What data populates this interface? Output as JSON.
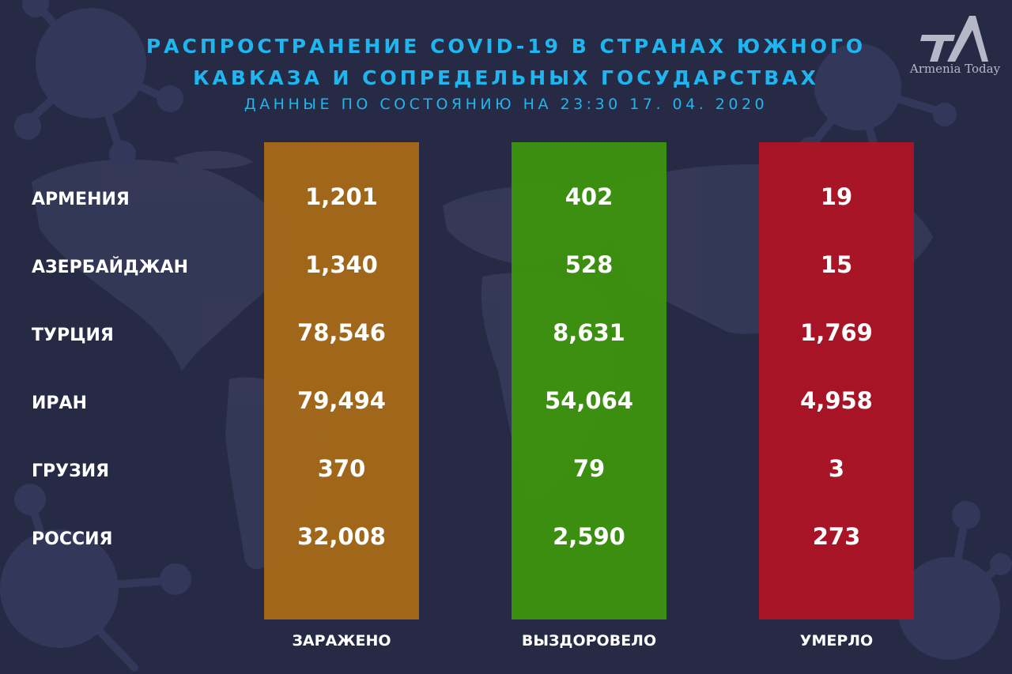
{
  "header": {
    "title_line1": "РАСПРОСТРАНЕНИЕ COVID-19 В СТРАНАХ ЮЖНОГО",
    "title_line2": "КАВКАЗА И СОПРЕДЕЛЬНЫХ ГОСУДАРСТВАХ",
    "subtitle": "ДАННЫЕ ПО СОСТОЯНИЮ НА 23:30  17. 04. 2020"
  },
  "logo": {
    "text": "Armenia Today"
  },
  "colors": {
    "background": "#262a45",
    "title": "#1fb6f0",
    "infected": "#a86a18",
    "recovered": "#3e960c",
    "died": "#b21222"
  },
  "chart_data": {
    "type": "table",
    "categories": [
      "АРМЕНИЯ",
      "АЗЕРБАЙДЖАН",
      "ТУРЦИЯ",
      "ИРАН",
      "ГРУЗИЯ",
      "РОССИЯ"
    ],
    "series": [
      {
        "name": "ЗАРАЖЕНО",
        "values": [
          "1,201",
          "1,340",
          "78,546",
          "79,494",
          "370",
          "32,008"
        ]
      },
      {
        "name": "ВЫЗДОРОВЕЛО",
        "values": [
          "402",
          "528",
          "8,631",
          "54,064",
          "79",
          "2,590"
        ]
      },
      {
        "name": "УМЕРЛО",
        "values": [
          "19",
          "15",
          "1,769",
          "4,958",
          "3",
          "273"
        ]
      }
    ]
  }
}
